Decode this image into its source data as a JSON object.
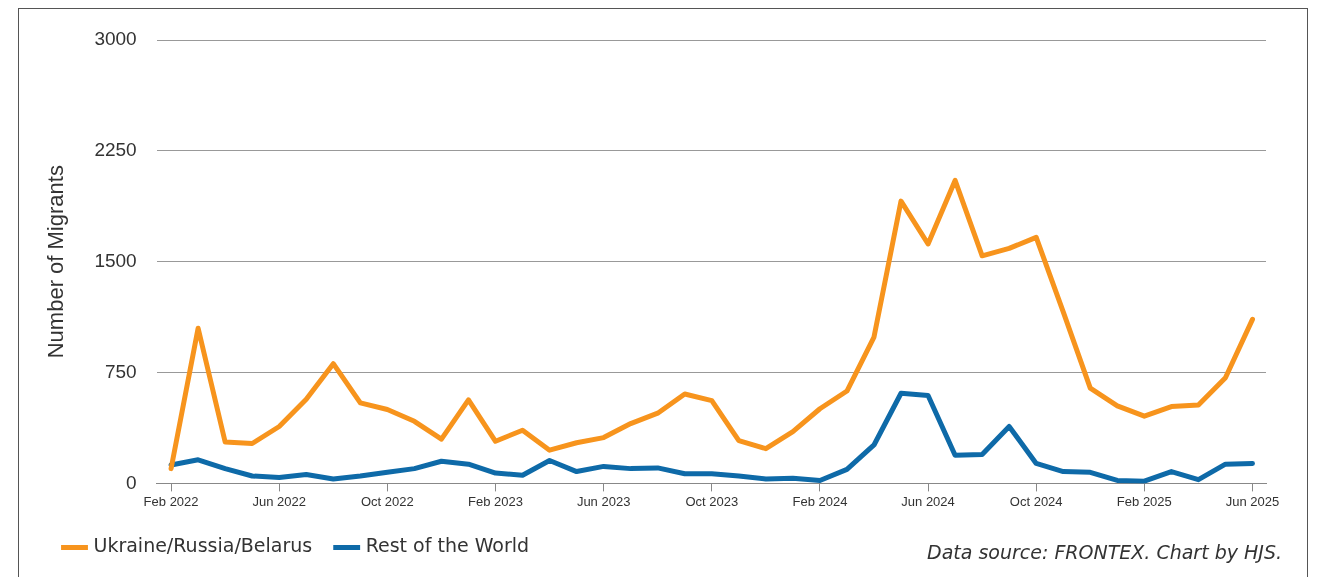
{
  "chart_data": {
    "type": "line",
    "ylabel": "Number of Migrants",
    "x": [
      "2022-02",
      "2022-03",
      "2022-04",
      "2022-05",
      "2022-06",
      "2022-07",
      "2022-08",
      "2022-09",
      "2022-10",
      "2022-11",
      "2022-12",
      "2023-01",
      "2023-02",
      "2023-03",
      "2023-04",
      "2023-05",
      "2023-06",
      "2023-07",
      "2023-08",
      "2023-09",
      "2023-10",
      "2023-11",
      "2023-12",
      "2024-01",
      "2024-02",
      "2024-03",
      "2024-04",
      "2024-05",
      "2024-06",
      "2024-07",
      "2024-08",
      "2024-09",
      "2024-10",
      "2024-11",
      "2024-12",
      "2025-01",
      "2025-02",
      "2025-03",
      "2025-04",
      "2025-05",
      "2025-06"
    ],
    "series": [
      {
        "name": "Ukraine/Russia/Belarus",
        "color": "#f7941d",
        "values": [
          100,
          1050,
          280,
          270,
          385,
          570,
          810,
          545,
          500,
          420,
          300,
          565,
          285,
          360,
          225,
          275,
          310,
          405,
          475,
          605,
          560,
          290,
          235,
          350,
          505,
          625,
          990,
          1910,
          1620,
          2050,
          1540,
          1590,
          1665,
          1160,
          645,
          525,
          455,
          520,
          530,
          715,
          1110
        ]
      },
      {
        "name": "Rest of the World",
        "color": "#0e6aa8",
        "values": [
          125,
          160,
          100,
          50,
          40,
          60,
          30,
          50,
          75,
          100,
          150,
          130,
          70,
          55,
          155,
          80,
          115,
          100,
          105,
          65,
          65,
          50,
          30,
          35,
          20,
          95,
          260,
          610,
          595,
          190,
          195,
          385,
          135,
          80,
          75,
          20,
          15,
          80,
          25,
          130,
          135
        ]
      }
    ],
    "xlim": [
      "2022-01-15",
      "2025-06-16"
    ],
    "xticks": [
      {
        "value": "2022-02",
        "label": "Feb 2022"
      },
      {
        "value": "2022-06",
        "label": "Jun 2022"
      },
      {
        "value": "2022-10",
        "label": "Oct 2022"
      },
      {
        "value": "2023-02",
        "label": "Feb 2023"
      },
      {
        "value": "2023-06",
        "label": "Jun 2023"
      },
      {
        "value": "2023-10",
        "label": "Oct 2023"
      },
      {
        "value": "2024-02",
        "label": "Feb 2024"
      },
      {
        "value": "2024-06",
        "label": "Jun 2024"
      },
      {
        "value": "2024-10",
        "label": "Oct 2024"
      },
      {
        "value": "2025-02",
        "label": "Feb 2025"
      },
      {
        "value": "2025-06",
        "label": "Jun 2025"
      }
    ],
    "ylim": [
      0,
      3000
    ],
    "yticks": [
      0,
      750,
      1500,
      2250,
      3000
    ],
    "grid": "y",
    "legend": "bottom left",
    "marker": "none",
    "line_style": "solid",
    "annotations": [
      "Data source: FRONTEX. Chart by HJS."
    ]
  }
}
